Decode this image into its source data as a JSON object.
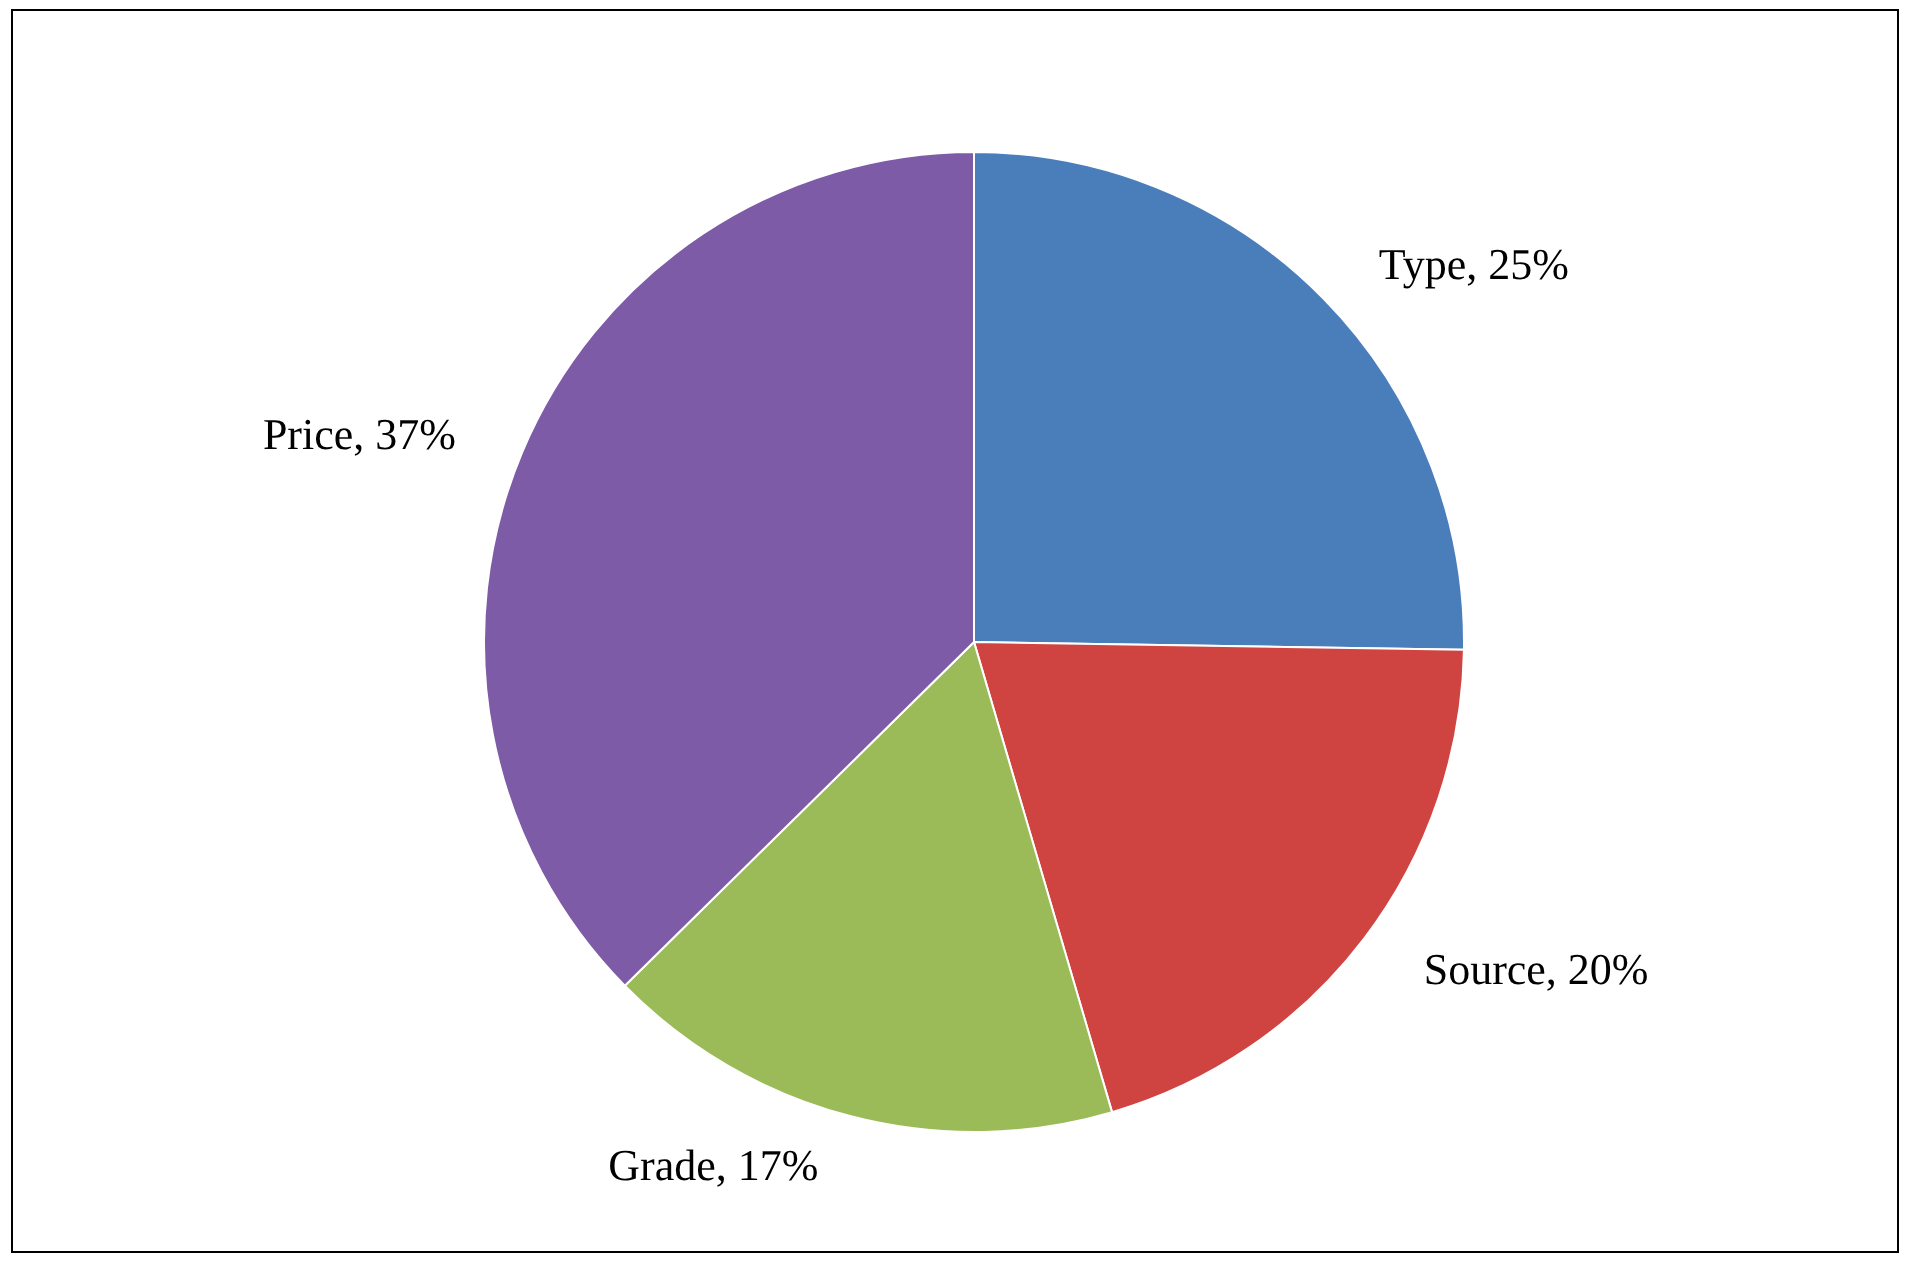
{
  "chart_data": {
    "type": "pie",
    "categories": [
      "Type",
      "Source",
      "Grade",
      "Price"
    ],
    "values": [
      25,
      20,
      17,
      37
    ],
    "value_labels": [
      ", 25%",
      ", 20%",
      ", 17%",
      ", 37%"
    ],
    "colors": [
      "#4a7ebb",
      "#cf4440",
      "#9bbb59",
      "#7d5ba6"
    ]
  }
}
